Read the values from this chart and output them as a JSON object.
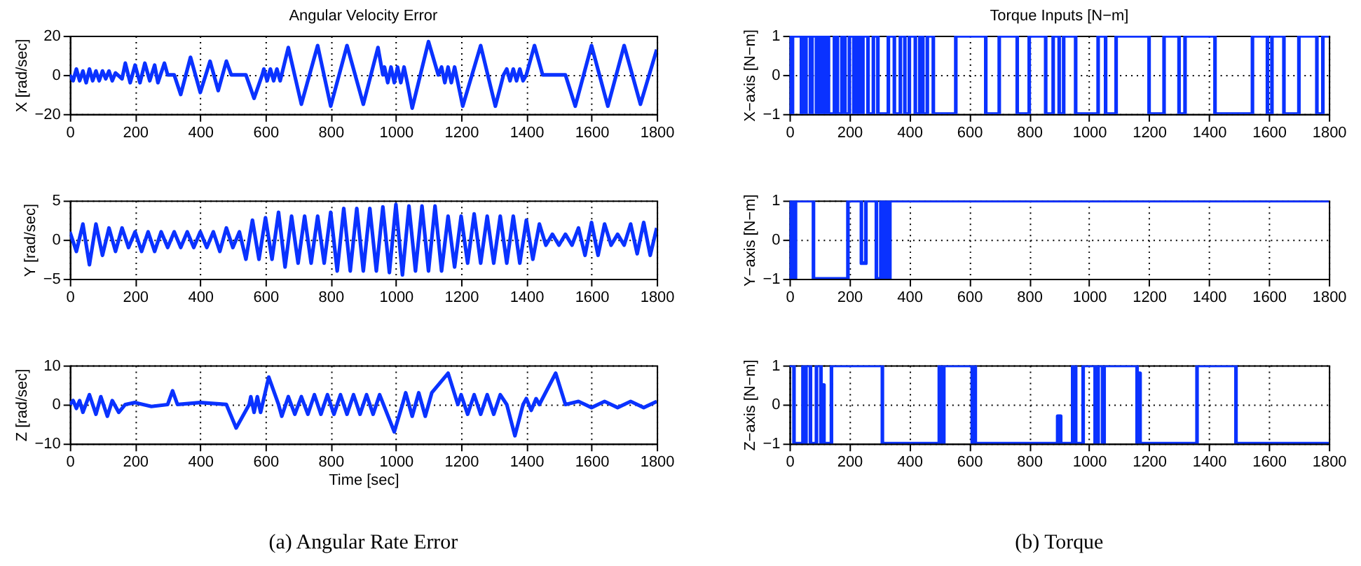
{
  "chart_data": [
    {
      "type": "line",
      "title": "Angular Velocity Error",
      "ylabel": "X [rad/sec]",
      "xlim": [
        0,
        1800
      ],
      "xticks": [
        0,
        200,
        400,
        600,
        800,
        1000,
        1200,
        1400,
        1600,
        1800
      ],
      "ylim": [
        -20,
        20
      ],
      "yticks": [
        -20,
        0,
        20
      ],
      "grid": true,
      "line_style": "solid",
      "marker": "none",
      "series": [
        {
          "color": "#0a32ff",
          "x": [
            0,
            10,
            20,
            30,
            40,
            50,
            60,
            70,
            80,
            90,
            100,
            110,
            120,
            130,
            140,
            160,
            170,
            185,
            200,
            215,
            230,
            245,
            260,
            270,
            290,
            300,
            320,
            340,
            370,
            400,
            430,
            455,
            480,
            495,
            540,
            565,
            590,
            595,
            605,
            615,
            625,
            635,
            645,
            670,
            710,
            760,
            800,
            850,
            900,
            945,
            960,
            965,
            975,
            985,
            995,
            1005,
            1015,
            1025,
            1035,
            1050,
            1100,
            1130,
            1140,
            1150,
            1160,
            1170,
            1180,
            1190,
            1205,
            1260,
            1305,
            1330,
            1340,
            1350,
            1360,
            1370,
            1380,
            1390,
            1400,
            1425,
            1450,
            1520,
            1550,
            1600,
            1650,
            1700,
            1750,
            1800
          ],
          "values": [
            0,
            -3,
            3,
            -3,
            2,
            -4,
            3,
            -3,
            2,
            -3,
            2,
            -2,
            2,
            -3,
            1,
            -2,
            6,
            -4,
            5,
            -4,
            6,
            -3,
            5,
            -4,
            6,
            0,
            0,
            -10,
            9,
            -9,
            7,
            -8,
            7,
            0,
            0,
            -12,
            0,
            3,
            -3,
            3,
            -3,
            3,
            -3,
            14,
            -15,
            15,
            -16,
            15,
            -15,
            14,
            0,
            4,
            -4,
            4,
            -4,
            4,
            -4,
            4,
            -4,
            -17,
            17,
            0,
            4,
            -4,
            4,
            -4,
            4,
            -4,
            -16,
            15,
            -16,
            0,
            3,
            -3,
            3,
            -3,
            3,
            -3,
            0,
            15,
            0,
            0,
            -16,
            15,
            -16,
            15,
            -15,
            13
          ]
        }
      ]
    },
    {
      "type": "step",
      "title": "Torque Inputs [N−m]",
      "ylabel": "X−axis [N−m]",
      "xlim": [
        0,
        1800
      ],
      "xticks": [
        0,
        200,
        400,
        600,
        800,
        1000,
        1200,
        1400,
        1600,
        1800
      ],
      "ylim": [
        -1,
        1
      ],
      "yticks": [
        -1,
        0,
        1
      ],
      "grid": true,
      "line_style": "solid",
      "marker": "none",
      "series": [
        {
          "color": "#0a32ff",
          "x": [
            0,
            5,
            10,
            40,
            45,
            50,
            55,
            70,
            75,
            90,
            95,
            100,
            105,
            115,
            120,
            130,
            150,
            160,
            175,
            185,
            200,
            215,
            225,
            235,
            245,
            262,
            280,
            295,
            330,
            350,
            370,
            385,
            400,
            420,
            435,
            445,
            460,
            480,
            555,
            655,
            700,
            760,
            800,
            855,
            880,
            900,
            915,
            955,
            1030,
            1055,
            1090,
            1200,
            1250,
            1300,
            1320,
            1420,
            1545,
            1595,
            1610,
            1650,
            1700,
            1760,
            1780,
            1800
          ],
          "values": [
            1,
            -1,
            1,
            -1,
            1,
            -1,
            1,
            -1,
            1,
            -1,
            1,
            -1,
            1,
            -1,
            1,
            -1,
            1,
            -1,
            1,
            -1,
            1,
            -1,
            1,
            -1,
            1,
            -1,
            1,
            -1,
            1,
            -1,
            1,
            -1,
            1,
            -1,
            1,
            -1,
            1,
            -1,
            1,
            -1,
            1,
            -1,
            1,
            -1,
            1,
            -1,
            1,
            -1,
            1,
            -1,
            1,
            -1,
            1,
            -1,
            1,
            -1,
            1,
            -1,
            1,
            -1,
            1,
            -1,
            1,
            1
          ]
        }
      ]
    },
    {
      "type": "line",
      "ylabel": "Y [rad/sec]",
      "xlim": [
        0,
        1800
      ],
      "xticks": [
        0,
        200,
        400,
        600,
        800,
        1000,
        1200,
        1400,
        1600,
        1800
      ],
      "ylim": [
        -5,
        5
      ],
      "yticks": [
        -5,
        0,
        5
      ],
      "grid": true,
      "line_style": "solid",
      "marker": "none",
      "series": [
        {
          "color": "#0a32ff",
          "x": [
            0,
            20,
            40,
            60,
            80,
            100,
            120,
            140,
            160,
            180,
            200,
            220,
            240,
            260,
            280,
            300,
            320,
            340,
            360,
            380,
            400,
            420,
            440,
            460,
            480,
            500,
            520,
            540,
            560,
            580,
            600,
            620,
            640,
            660,
            680,
            700,
            720,
            740,
            760,
            780,
            800,
            820,
            840,
            860,
            880,
            900,
            920,
            940,
            960,
            980,
            1000,
            1020,
            1040,
            1060,
            1080,
            1100,
            1120,
            1140,
            1160,
            1180,
            1200,
            1220,
            1240,
            1260,
            1280,
            1300,
            1320,
            1340,
            1360,
            1380,
            1400,
            1420,
            1440,
            1460,
            1480,
            1500,
            1520,
            1540,
            1560,
            1580,
            1600,
            1620,
            1640,
            1660,
            1680,
            1700,
            1720,
            1740,
            1760,
            1780,
            1800
          ],
          "values": [
            1,
            -1.5,
            2,
            -3.2,
            2,
            -2,
            1.5,
            -1.5,
            1.5,
            -1,
            1,
            -1.5,
            1,
            -1.5,
            1,
            -1,
            1,
            -1,
            1,
            -1,
            1,
            -1,
            1,
            -1.5,
            1.5,
            -1,
            1,
            -2.5,
            2.5,
            -2.5,
            2.8,
            -2.5,
            3.5,
            -3.5,
            3,
            -3,
            3,
            -3,
            3,
            -3,
            3.5,
            -4,
            4,
            -4,
            4,
            -4,
            4,
            -4,
            4.2,
            -4.2,
            4.5,
            -4.5,
            4.3,
            -4,
            4.3,
            -4,
            4.3,
            -4,
            3,
            -3.5,
            3,
            -3,
            3.3,
            -3,
            3,
            -3,
            3,
            -3,
            3,
            -3,
            2.5,
            -2.5,
            2,
            -0.7,
            0.7,
            -0.7,
            0.7,
            -0.7,
            1.5,
            -2,
            2.2,
            -2,
            2,
            -0.7,
            0.7,
            -0.7,
            2,
            -1.8,
            2.2,
            -2,
            1.5
          ]
        }
      ]
    },
    {
      "type": "step",
      "ylabel": "Y−axis [N−m]",
      "xlim": [
        0,
        1800
      ],
      "xticks": [
        0,
        200,
        400,
        600,
        800,
        1000,
        1200,
        1400,
        1600,
        1800
      ],
      "ylim": [
        -1,
        1
      ],
      "yticks": [
        -1,
        0,
        1
      ],
      "grid": true,
      "line_style": "solid",
      "marker": "none",
      "series": [
        {
          "color": "#0a32ff",
          "x": [
            0,
            5,
            15,
            20,
            80,
            195,
            240,
            255,
            290,
            305,
            310,
            315,
            320,
            325,
            330,
            335,
            1800
          ],
          "values": [
            -1,
            1,
            -1,
            1,
            -1,
            1,
            -0.6,
            1,
            -1,
            1,
            -1,
            1,
            -1,
            1,
            -1,
            1,
            1
          ]
        }
      ]
    },
    {
      "type": "line",
      "ylabel": "Z [rad/sec]",
      "xlabel": "Time [sec]",
      "annotations": [
        "(a)  Angular Rate Error"
      ],
      "xlim": [
        0,
        1800
      ],
      "xticks": [
        0,
        200,
        400,
        600,
        800,
        1000,
        1200,
        1400,
        1600,
        1800
      ],
      "ylim": [
        -10,
        10
      ],
      "yticks": [
        -10,
        0,
        10
      ],
      "grid": true,
      "line_style": "solid",
      "marker": "none",
      "series": [
        {
          "color": "#0a32ff",
          "x": [
            0,
            10,
            20,
            30,
            40,
            60,
            80,
            95,
            115,
            130,
            150,
            170,
            200,
            250,
            300,
            315,
            330,
            400,
            480,
            510,
            550,
            555,
            565,
            575,
            585,
            610,
            640,
            650,
            670,
            690,
            710,
            730,
            750,
            770,
            790,
            810,
            830,
            850,
            870,
            890,
            910,
            930,
            950,
            995,
            1020,
            1030,
            1050,
            1070,
            1090,
            1110,
            1160,
            1190,
            1200,
            1220,
            1240,
            1260,
            1280,
            1300,
            1320,
            1340,
            1365,
            1390,
            1400,
            1415,
            1430,
            1440,
            1490,
            1520,
            1560,
            1600,
            1640,
            1680,
            1720,
            1760,
            1800
          ],
          "values": [
            0,
            1,
            -1,
            1,
            -2,
            2.5,
            -2.5,
            2,
            -3,
            1,
            -2,
            0,
            0.5,
            -0.5,
            0,
            3.5,
            0,
            0.5,
            0,
            -6,
            0,
            2,
            -2,
            2,
            -2,
            7,
            0,
            -3,
            2,
            -2.5,
            2,
            -2.5,
            2.5,
            -2.5,
            2.5,
            -2.5,
            2.5,
            -2.5,
            2.5,
            -2.5,
            2.5,
            -2.5,
            2.5,
            -7,
            0,
            3,
            -3,
            3,
            -3,
            3,
            8,
            0,
            2.5,
            -2.5,
            2.5,
            -2.5,
            2.5,
            -2.5,
            2.5,
            0,
            -8,
            0,
            1.5,
            -1.5,
            1.5,
            0,
            8,
            0,
            0.8,
            -0.8,
            0.8,
            -0.8,
            0.8,
            -0.8,
            0.8
          ]
        }
      ]
    },
    {
      "type": "step",
      "ylabel": "Z−axis [N−m]",
      "annotations": [
        "(b)  Torque"
      ],
      "xlim": [
        0,
        1800
      ],
      "xticks": [
        0,
        200,
        400,
        600,
        800,
        1000,
        1200,
        1400,
        1600,
        1800
      ],
      "ylim": [
        -1,
        1
      ],
      "yticks": [
        -1,
        0,
        1
      ],
      "grid": true,
      "line_style": "solid",
      "marker": "none",
      "series": [
        {
          "color": "#0a32ff",
          "x": [
            0,
            15,
            45,
            50,
            55,
            70,
            90,
            105,
            110,
            115,
            140,
            310,
            500,
            510,
            515,
            610,
            615,
            620,
            895,
            905,
            945,
            955,
            980,
            1020,
            1030,
            1045,
            1050,
            1160,
            1165,
            1170,
            1360,
            1490,
            1800
          ],
          "values": [
            1,
            -1,
            1,
            -1,
            1,
            -1,
            1,
            -1,
            0.5,
            -1,
            1,
            -1,
            1,
            -1,
            1,
            -1,
            1,
            -1,
            -0.3,
            -1,
            1,
            -1,
            1,
            -1,
            1,
            -1,
            1,
            -1,
            0.8,
            -1,
            1,
            -1,
            -1
          ]
        }
      ]
    }
  ]
}
